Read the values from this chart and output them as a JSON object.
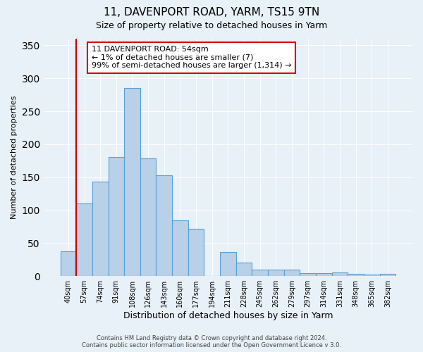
{
  "title": "11, DAVENPORT ROAD, YARM, TS15 9TN",
  "subtitle": "Size of property relative to detached houses in Yarm",
  "xlabel": "Distribution of detached houses by size in Yarm",
  "ylabel": "Number of detached properties",
  "bar_labels": [
    "40sqm",
    "57sqm",
    "74sqm",
    "91sqm",
    "108sqm",
    "126sqm",
    "143sqm",
    "160sqm",
    "177sqm",
    "194sqm",
    "211sqm",
    "228sqm",
    "245sqm",
    "262sqm",
    "279sqm",
    "297sqm",
    "314sqm",
    "331sqm",
    "348sqm",
    "365sqm",
    "382sqm"
  ],
  "bar_values": [
    38,
    110,
    143,
    181,
    285,
    178,
    153,
    85,
    72,
    0,
    37,
    21,
    10,
    10,
    10,
    5,
    5,
    6,
    3,
    2,
    3
  ],
  "bar_color": "#b8d0e8",
  "bar_edge_color": "#5a9fd4",
  "vline_x": 0.5,
  "vline_color": "#cc0000",
  "annotation_title": "11 DAVENPORT ROAD: 54sqm",
  "annotation_line1": "← 1% of detached houses are smaller (7)",
  "annotation_line2": "99% of semi-detached houses are larger (1,314) →",
  "annotation_box_color": "#ffffff",
  "annotation_box_edge": "#cc0000",
  "ylim": [
    0,
    360
  ],
  "yticks": [
    0,
    50,
    100,
    150,
    200,
    250,
    300,
    350
  ],
  "footer1": "Contains HM Land Registry data © Crown copyright and database right 2024.",
  "footer2": "Contains public sector information licensed under the Open Government Licence v 3.0.",
  "background_color": "#e8f0f8",
  "plot_background": "#e8f0f8"
}
